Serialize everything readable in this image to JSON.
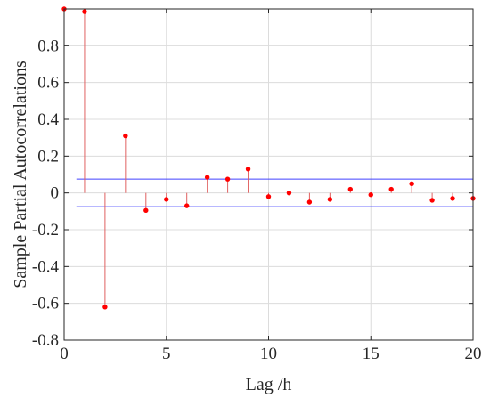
{
  "chart_data": {
    "type": "stem",
    "xlabel": "Lag /h",
    "ylabel": "Sample Partial Autocorrelations",
    "xlim": [
      0,
      20
    ],
    "ylim": [
      -0.8,
      1.0
    ],
    "x_ticks": [
      "0",
      "5",
      "10",
      "15",
      "20"
    ],
    "y_ticks": [
      "-0.8",
      "-0.6",
      "-0.4",
      "-0.2",
      "0",
      "0.2",
      "0.4",
      "0.6",
      "0.8"
    ],
    "grid": true,
    "lags": [
      0,
      1,
      2,
      3,
      4,
      5,
      6,
      7,
      8,
      9,
      10,
      11,
      12,
      13,
      14,
      15,
      16,
      17,
      18,
      19,
      20
    ],
    "values": [
      1.0,
      0.985,
      -0.62,
      0.31,
      -0.095,
      -0.035,
      -0.07,
      0.085,
      0.075,
      0.13,
      -0.02,
      0.0,
      -0.05,
      -0.035,
      0.02,
      -0.01,
      0.02,
      0.05,
      -0.04,
      -0.03,
      -0.03
    ],
    "confidence_bounds": [
      0.075,
      -0.075
    ],
    "colors": {
      "stem": "#e06060",
      "marker": "#ff0000",
      "bounds": "#4040ff",
      "axes": "#262626",
      "grid": "#dcdcdc"
    }
  }
}
